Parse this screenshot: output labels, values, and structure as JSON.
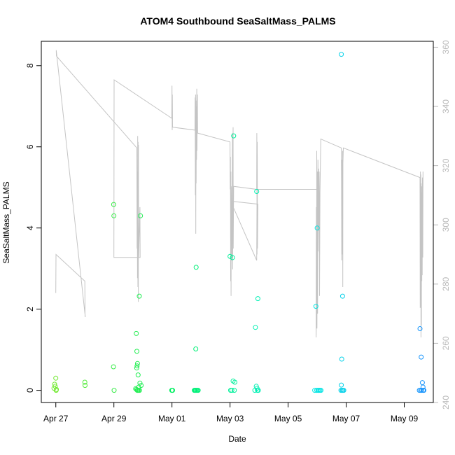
{
  "chart_data": {
    "type": "scatter",
    "title": "ATOM4 Southbound SeaSaltMass_PALMS",
    "xlabel": "Date",
    "ylabel": "SeaSaltMass_PALMS",
    "x_axis": {
      "type": "date",
      "range": [
        "2018-04-26 12:00",
        "2018-05-10 00:00"
      ],
      "ticks": [
        {
          "value": "2018-04-27",
          "label": "Apr 27"
        },
        {
          "value": "2018-04-29",
          "label": "Apr 29"
        },
        {
          "value": "2018-05-01",
          "label": "May 01"
        },
        {
          "value": "2018-05-03",
          "label": "May 03"
        },
        {
          "value": "2018-05-05",
          "label": "May 05"
        },
        {
          "value": "2018-05-07",
          "label": "May 07"
        },
        {
          "value": "2018-05-09",
          "label": "May 09"
        }
      ]
    },
    "y_axis_left": {
      "range": [
        -0.3,
        8.6
      ],
      "ticks": [
        {
          "value": 0,
          "label": "0"
        },
        {
          "value": 2,
          "label": "2"
        },
        {
          "value": 4,
          "label": "4"
        },
        {
          "value": 6,
          "label": "6"
        },
        {
          "value": 8,
          "label": "8"
        }
      ]
    },
    "y_axis_right": {
      "range": [
        240,
        362
      ],
      "color": "#b8b8b8",
      "ticks": [
        {
          "value": 240,
          "label": "240"
        },
        {
          "value": 260,
          "label": "260"
        },
        {
          "value": 280,
          "label": "280"
        },
        {
          "value": 300,
          "label": "300"
        },
        {
          "value": 320,
          "label": "320"
        },
        {
          "value": 340,
          "label": "340"
        },
        {
          "value": 360,
          "label": "360"
        }
      ]
    },
    "grid": false,
    "legend": "none",
    "colors": {
      "line": "#c4c4c4",
      "point_gradient": [
        "#7fe82a",
        "#00f060",
        "#00f0e0",
        "#1a8cff"
      ]
    },
    "series": [
      {
        "kind": "points",
        "axis": "left",
        "points": [
          {
            "x": "2018-04-27 00:00",
            "y": 0.3
          },
          {
            "x": "2018-04-26 23:00",
            "y": 0.15
          },
          {
            "x": "2018-04-26 23:30",
            "y": 0.1
          },
          {
            "x": "2018-04-26 22:30",
            "y": 0.05
          },
          {
            "x": "2018-04-27 00:30",
            "y": 0.02
          },
          {
            "x": "2018-04-27 00:15",
            "y": 0.0
          },
          {
            "x": "2018-04-28 00:00",
            "y": 0.2
          },
          {
            "x": "2018-04-28 00:10",
            "y": 0.12
          },
          {
            "x": "2018-04-28 23:50",
            "y": 4.58
          },
          {
            "x": "2018-04-29 00:00",
            "y": 4.3
          },
          {
            "x": "2018-04-28 23:40",
            "y": 0.58
          },
          {
            "x": "2018-04-29 00:10",
            "y": 0.0
          },
          {
            "x": "2018-04-29 18:30",
            "y": 1.4
          },
          {
            "x": "2018-04-29 19:00",
            "y": 0.96
          },
          {
            "x": "2018-04-29 19:30",
            "y": 0.66
          },
          {
            "x": "2018-04-29 19:10",
            "y": 0.6
          },
          {
            "x": "2018-04-29 18:50",
            "y": 0.55
          },
          {
            "x": "2018-04-29 20:00",
            "y": 0.38
          },
          {
            "x": "2018-04-29 21:00",
            "y": 2.32
          },
          {
            "x": "2018-04-29 22:00",
            "y": 4.3
          },
          {
            "x": "2018-04-29 21:30",
            "y": 0.18
          },
          {
            "x": "2018-04-29 22:30",
            "y": 0.12
          },
          {
            "x": "2018-04-29 20:30",
            "y": 0.08
          },
          {
            "x": "2018-04-29 18:00",
            "y": 0.04
          },
          {
            "x": "2018-04-29 18:40",
            "y": 0.02
          },
          {
            "x": "2018-04-29 19:20",
            "y": 0.0
          },
          {
            "x": "2018-04-29 19:40",
            "y": 0.0
          },
          {
            "x": "2018-04-29 20:20",
            "y": 0.0
          },
          {
            "x": "2018-04-29 21:10",
            "y": 0.0
          },
          {
            "x": "2018-04-30 23:50",
            "y": 0.0
          },
          {
            "x": "2018-05-01 00:10",
            "y": 0.0
          },
          {
            "x": "2018-05-01 00:30",
            "y": 0.0
          },
          {
            "x": "2018-05-01 20:00",
            "y": 3.03
          },
          {
            "x": "2018-05-01 19:40",
            "y": 1.02
          },
          {
            "x": "2018-05-01 18:30",
            "y": 0.0
          },
          {
            "x": "2018-05-01 19:00",
            "y": 0.0
          },
          {
            "x": "2018-05-01 19:30",
            "y": 0.0
          },
          {
            "x": "2018-05-01 20:20",
            "y": 0.0
          },
          {
            "x": "2018-05-01 21:00",
            "y": 0.0
          },
          {
            "x": "2018-05-01 21:40",
            "y": 0.0
          },
          {
            "x": "2018-05-03 00:00",
            "y": 3.3
          },
          {
            "x": "2018-05-03 02:00",
            "y": 3.27
          },
          {
            "x": "2018-05-03 03:00",
            "y": 6.27
          },
          {
            "x": "2018-05-03 02:30",
            "y": 0.23
          },
          {
            "x": "2018-05-03 04:00",
            "y": 0.2
          },
          {
            "x": "2018-05-03 00:30",
            "y": 0.0
          },
          {
            "x": "2018-05-03 01:30",
            "y": 0.0
          },
          {
            "x": "2018-05-03 03:30",
            "y": 0.0
          },
          {
            "x": "2018-05-03 22:00",
            "y": 4.9
          },
          {
            "x": "2018-05-03 23:00",
            "y": 2.26
          },
          {
            "x": "2018-05-03 21:00",
            "y": 1.55
          },
          {
            "x": "2018-05-03 21:40",
            "y": 0.1
          },
          {
            "x": "2018-05-03 22:20",
            "y": 0.05
          },
          {
            "x": "2018-05-03 20:30",
            "y": 0.0
          },
          {
            "x": "2018-05-03 22:40",
            "y": 0.0
          },
          {
            "x": "2018-05-03 23:20",
            "y": 0.0
          },
          {
            "x": "2018-05-06 00:00",
            "y": 4.0
          },
          {
            "x": "2018-05-05 23:00",
            "y": 2.07
          },
          {
            "x": "2018-05-05 22:00",
            "y": 0.0
          },
          {
            "x": "2018-05-05 23:40",
            "y": 0.0
          },
          {
            "x": "2018-05-06 00:40",
            "y": 0.0
          },
          {
            "x": "2018-05-06 01:30",
            "y": 0.0
          },
          {
            "x": "2018-05-06 02:20",
            "y": 0.0
          },
          {
            "x": "2018-05-06 03:10",
            "y": 0.0
          },
          {
            "x": "2018-05-06 20:00",
            "y": 8.28
          },
          {
            "x": "2018-05-06 21:00",
            "y": 2.32
          },
          {
            "x": "2018-05-06 20:20",
            "y": 0.77
          },
          {
            "x": "2018-05-06 20:00",
            "y": 0.13
          },
          {
            "x": "2018-05-06 19:40",
            "y": 0.0
          },
          {
            "x": "2018-05-06 20:40",
            "y": 0.0
          },
          {
            "x": "2018-05-06 21:20",
            "y": 0.0
          },
          {
            "x": "2018-05-06 22:00",
            "y": 0.0
          },
          {
            "x": "2018-05-09 13:00",
            "y": 1.52
          },
          {
            "x": "2018-05-09 14:00",
            "y": 0.82
          },
          {
            "x": "2018-05-09 15:00",
            "y": 0.19
          },
          {
            "x": "2018-05-09 15:30",
            "y": 0.08
          },
          {
            "x": "2018-05-09 12:30",
            "y": 0.0
          },
          {
            "x": "2018-05-09 13:30",
            "y": 0.0
          },
          {
            "x": "2018-05-09 14:30",
            "y": 0.0
          },
          {
            "x": "2018-05-09 15:40",
            "y": 0.0
          },
          {
            "x": "2018-05-09 16:10",
            "y": 0.0
          }
        ]
      },
      {
        "kind": "line",
        "axis": "right",
        "color": "#c4c4c4",
        "points": [
          {
            "x": "2018-04-27 00:00",
            "y": 277
          },
          {
            "x": "2018-04-27 00:10",
            "y": 290
          },
          {
            "x": "2018-04-28 00:00",
            "y": 281
          },
          {
            "x": "2018-04-28 00:10",
            "y": 269
          },
          {
            "x": "2018-04-28 00:20",
            "y": 269
          },
          {
            "x": "2018-04-27 00:20",
            "y": 359
          },
          {
            "x": "2018-04-27 00:30",
            "y": 357
          },
          {
            "x": "2018-04-29 19:00",
            "y": 326
          },
          {
            "x": "2018-04-29 19:10",
            "y": 292
          },
          {
            "x": "2018-04-29 19:20",
            "y": 318
          },
          {
            "x": "2018-04-29 19:30",
            "y": 282
          },
          {
            "x": "2018-04-29 19:40",
            "y": 330
          },
          {
            "x": "2018-04-29 19:50",
            "y": 279
          },
          {
            "x": "2018-04-29 20:00",
            "y": 328
          },
          {
            "x": "2018-04-29 20:10",
            "y": 274
          },
          {
            "x": "2018-04-29 20:20",
            "y": 327
          },
          {
            "x": "2018-04-29 20:30",
            "y": 289
          },
          {
            "x": "2018-04-29 21:30",
            "y": 306
          },
          {
            "x": "2018-04-29 21:40",
            "y": 289
          },
          {
            "x": "2018-04-29 00:00",
            "y": 289
          },
          {
            "x": "2018-04-29 00:10",
            "y": 349
          },
          {
            "x": "2018-04-30 23:50",
            "y": 336
          },
          {
            "x": "2018-05-01 00:00",
            "y": 347
          },
          {
            "x": "2018-05-01 00:10",
            "y": 332
          },
          {
            "x": "2018-05-01 00:20",
            "y": 344
          },
          {
            "x": "2018-05-01 00:30",
            "y": 333
          },
          {
            "x": "2018-05-01 19:00",
            "y": 332
          },
          {
            "x": "2018-05-01 19:10",
            "y": 343
          },
          {
            "x": "2018-05-01 19:20",
            "y": 310
          },
          {
            "x": "2018-05-01 19:30",
            "y": 344
          },
          {
            "x": "2018-05-01 19:40",
            "y": 297
          },
          {
            "x": "2018-05-01 19:50",
            "y": 342
          },
          {
            "x": "2018-05-01 20:00",
            "y": 314
          },
          {
            "x": "2018-05-01 20:10",
            "y": 340
          },
          {
            "x": "2018-05-01 20:20",
            "y": 322
          },
          {
            "x": "2018-05-01 20:30",
            "y": 346
          },
          {
            "x": "2018-05-01 20:40",
            "y": 325
          },
          {
            "x": "2018-05-01 21:00",
            "y": 344
          },
          {
            "x": "2018-05-01 21:10",
            "y": 331
          },
          {
            "x": "2018-05-03 00:00",
            "y": 328
          },
          {
            "x": "2018-05-03 00:10",
            "y": 312
          },
          {
            "x": "2018-05-03 00:20",
            "y": 323
          },
          {
            "x": "2018-05-03 00:30",
            "y": 281
          },
          {
            "x": "2018-05-03 00:40",
            "y": 318
          },
          {
            "x": "2018-05-03 00:50",
            "y": 276
          },
          {
            "x": "2018-05-03 01:00",
            "y": 313
          },
          {
            "x": "2018-05-03 01:30",
            "y": 288
          },
          {
            "x": "2018-05-03 02:00",
            "y": 331
          },
          {
            "x": "2018-05-03 02:10",
            "y": 285
          },
          {
            "x": "2018-05-03 02:30",
            "y": 333
          },
          {
            "x": "2018-05-03 02:40",
            "y": 292
          },
          {
            "x": "2018-05-03 03:00",
            "y": 313
          },
          {
            "x": "2018-05-03 22:00",
            "y": 312
          },
          {
            "x": "2018-05-03 22:10",
            "y": 331
          },
          {
            "x": "2018-05-03 22:20",
            "y": 290
          },
          {
            "x": "2018-05-03 22:30",
            "y": 328
          },
          {
            "x": "2018-05-03 22:40",
            "y": 292
          },
          {
            "x": "2018-05-03 23:00",
            "y": 307
          },
          {
            "x": "2018-05-03 00:30",
            "y": 308
          },
          {
            "x": "2018-05-03 22:00",
            "y": 288
          },
          {
            "x": "2018-05-03 22:20",
            "y": 312
          },
          {
            "x": "2018-05-06 01:00",
            "y": 312
          },
          {
            "x": "2018-05-06 00:00",
            "y": 295
          },
          {
            "x": "2018-05-05 23:10",
            "y": 262
          },
          {
            "x": "2018-05-05 23:20",
            "y": 306
          },
          {
            "x": "2018-05-05 23:30",
            "y": 266
          },
          {
            "x": "2018-05-05 23:40",
            "y": 325
          },
          {
            "x": "2018-05-05 23:50",
            "y": 265
          },
          {
            "x": "2018-05-06 00:10",
            "y": 318
          },
          {
            "x": "2018-05-06 00:20",
            "y": 270
          },
          {
            "x": "2018-05-06 00:40",
            "y": 322
          },
          {
            "x": "2018-05-06 00:50",
            "y": 291
          },
          {
            "x": "2018-05-06 01:10",
            "y": 319
          },
          {
            "x": "2018-05-06 01:20",
            "y": 298
          },
          {
            "x": "2018-05-06 01:40",
            "y": 318
          },
          {
            "x": "2018-05-06 02:00",
            "y": 276
          },
          {
            "x": "2018-05-06 02:20",
            "y": 311
          },
          {
            "x": "2018-05-06 03:00",
            "y": 329
          },
          {
            "x": "2018-05-06 20:00",
            "y": 326
          },
          {
            "x": "2018-05-06 20:10",
            "y": 314
          },
          {
            "x": "2018-05-06 20:20",
            "y": 288
          },
          {
            "x": "2018-05-06 20:30",
            "y": 322
          },
          {
            "x": "2018-05-06 20:40",
            "y": 290
          },
          {
            "x": "2018-05-06 21:00",
            "y": 325
          },
          {
            "x": "2018-05-06 21:10",
            "y": 279
          },
          {
            "x": "2018-05-06 21:20",
            "y": 321
          },
          {
            "x": "2018-05-06 21:40",
            "y": 326
          },
          {
            "x": "2018-05-09 13:00",
            "y": 316
          },
          {
            "x": "2018-05-09 13:10",
            "y": 272
          },
          {
            "x": "2018-05-09 13:20",
            "y": 318
          },
          {
            "x": "2018-05-09 13:30",
            "y": 278
          },
          {
            "x": "2018-05-09 13:40",
            "y": 317
          },
          {
            "x": "2018-05-09 13:50",
            "y": 262
          },
          {
            "x": "2018-05-09 14:00",
            "y": 314
          },
          {
            "x": "2018-05-09 14:10",
            "y": 266
          },
          {
            "x": "2018-05-09 14:20",
            "y": 313
          },
          {
            "x": "2018-05-09 14:30",
            "y": 281
          },
          {
            "x": "2018-05-09 14:40",
            "y": 311
          },
          {
            "x": "2018-05-09 14:50",
            "y": 283
          },
          {
            "x": "2018-05-09 15:00",
            "y": 316
          },
          {
            "x": "2018-05-09 15:20",
            "y": 289
          },
          {
            "x": "2018-05-09 15:30",
            "y": 318
          }
        ]
      }
    ]
  }
}
